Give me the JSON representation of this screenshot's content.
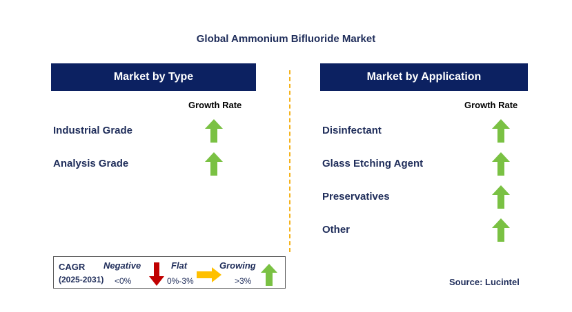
{
  "chart_data": {
    "type": "table",
    "title": "Global Ammonium Bifluoride Market",
    "panels": [
      {
        "header": "Market by Type",
        "column_label": "Growth Rate",
        "rows": [
          {
            "label": "Industrial Grade",
            "trend": "growing"
          },
          {
            "label": "Analysis Grade",
            "trend": "growing"
          }
        ]
      },
      {
        "header": "Market by Application",
        "column_label": "Growth Rate",
        "rows": [
          {
            "label": "Disinfectant",
            "trend": "growing"
          },
          {
            "label": "Glass Etching Agent",
            "trend": "growing"
          },
          {
            "label": "Preservatives",
            "trend": "growing"
          },
          {
            "label": "Other",
            "trend": "growing"
          }
        ]
      }
    ]
  },
  "legend": {
    "cagr_label": "CAGR",
    "period": "(2025-2031)",
    "negative_label": "Negative",
    "negative_range": "<0%",
    "flat_label": "Flat",
    "flat_range": "0%-3%",
    "growing_label": "Growing",
    "growing_range": ">3%"
  },
  "source": "Source: Lucintel",
  "colors": {
    "header_bg": "#0c2161",
    "growing": "#7ac143",
    "negative": "#c00000",
    "flat": "#ffc000",
    "divider": "#f5b21b"
  }
}
